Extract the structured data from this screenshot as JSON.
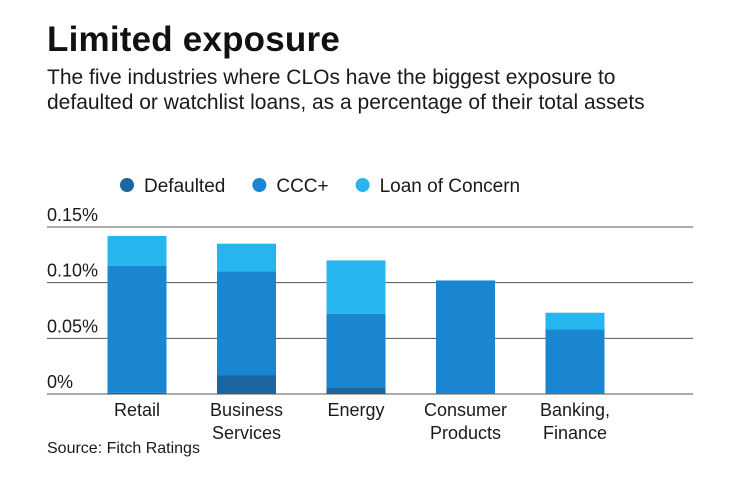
{
  "title": "Limited exposure",
  "subtitle": "The five industries where CLOs have the biggest exposure to defaulted or watchlist loans, as a percentage of their total assets",
  "source": "Source: Fitch Ratings",
  "colors": {
    "Defaulted": "#1b65a0",
    "CCC+": "#1a86d1",
    "Loan of Concern": "#27b5ef",
    "gridline": "#555555",
    "text": "#1a1a1a"
  },
  "chart_data": {
    "type": "bar",
    "stacked": true,
    "title": "Limited exposure",
    "xlabel": "",
    "ylabel": "",
    "ylim": [
      0,
      0.15
    ],
    "yticks": [
      0,
      0.05,
      0.1,
      0.15
    ],
    "ytick_labels": [
      "0%",
      "0.05%",
      "0.10%",
      "0.15%"
    ],
    "grid": true,
    "legend_position": "top-left",
    "categories": [
      [
        "Retail"
      ],
      [
        "Business",
        "Services"
      ],
      [
        "Energy"
      ],
      [
        "Consumer",
        "Products"
      ],
      [
        "Banking,",
        "Finance"
      ]
    ],
    "series": [
      {
        "name": "Defaulted",
        "values": [
          0.001,
          0.017,
          0.006,
          0.0,
          0.0
        ]
      },
      {
        "name": "CCC+",
        "values": [
          0.114,
          0.093,
          0.066,
          0.102,
          0.058
        ]
      },
      {
        "name": "Loan of Concern",
        "values": [
          0.027,
          0.025,
          0.048,
          0.0,
          0.015
        ]
      }
    ]
  }
}
